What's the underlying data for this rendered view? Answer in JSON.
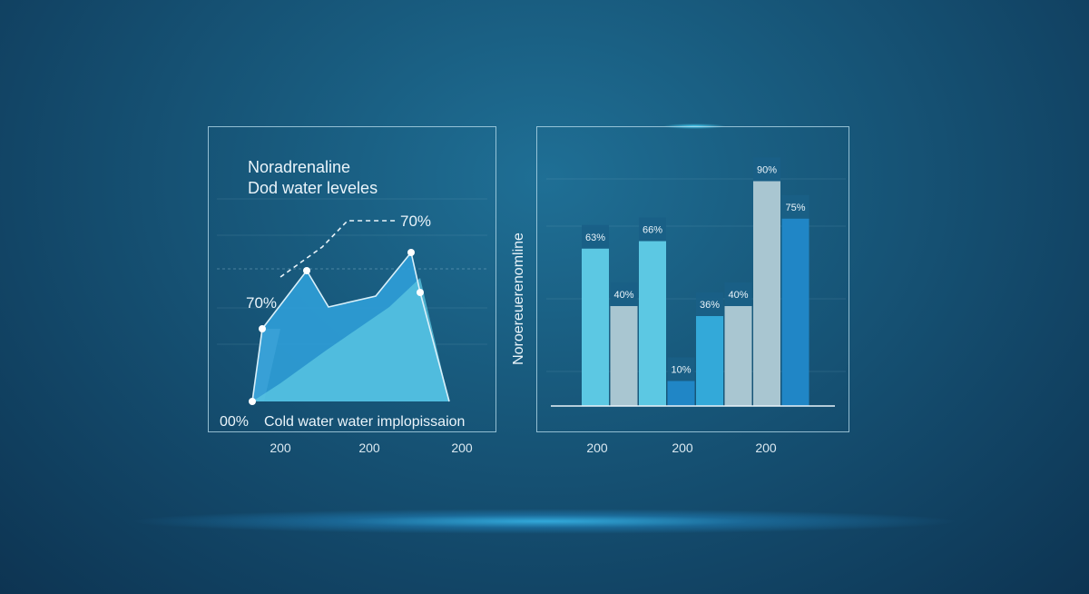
{
  "chart_data": [
    {
      "type": "area",
      "title": "Noradrenaline",
      "subtitle": "Dod water leveles",
      "annotations": [
        "70%",
        "70%",
        "00%",
        "Cold water water implopissaion"
      ],
      "x_tick_labels": [
        "200",
        "200",
        "200"
      ],
      "series": [
        {
          "values": [
            0,
            40,
            72,
            52,
            58,
            82,
            60,
            0
          ]
        },
        {
          "values": [
            0,
            10,
            28,
            40,
            52,
            68,
            0
          ]
        }
      ],
      "colors": [
        "#2f9fd8",
        "#5cc8e3",
        "#9fbfc9"
      ]
    },
    {
      "type": "bar",
      "ylabel": "Noroereuerenomline",
      "x_tick_labels": [
        "200",
        "200",
        "200"
      ],
      "values": [
        63,
        40,
        66,
        10,
        36,
        40,
        90,
        75
      ],
      "data_labels": [
        "63%",
        "40%",
        "66%",
        "10%",
        "36%",
        "40%",
        "90%",
        "75%"
      ],
      "colors": [
        "#5cc8e3",
        "#a9c6d1",
        "#5cc8e3",
        "#2086c6",
        "#33a9d9",
        "#a9c6d1",
        "#a9c6d1",
        "#2086c6"
      ]
    }
  ]
}
